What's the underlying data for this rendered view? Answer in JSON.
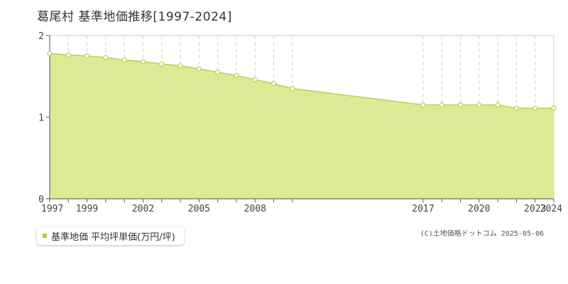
{
  "title": "葛尾村 基準地価推移[1997-2024]",
  "legend": {
    "label": "基準地価 平均坪単価(万円/坪)"
  },
  "copyright": "(C)土地価格ドットコム 2025-05-06",
  "colors": {
    "fill": "#dbeb95",
    "line": "#b5d34b",
    "marker_stroke": "#b5d34b",
    "marker_fill": "#ffffff",
    "grid": "#cfcfcf",
    "axis": "#555555",
    "legend_swatch": "#a8d134"
  },
  "chart_data": {
    "type": "area",
    "title": "葛尾村 基準地価推移[1997-2024]",
    "xlabel": "",
    "ylabel": "",
    "x": [
      1997,
      1998,
      1999,
      2000,
      2001,
      2002,
      2003,
      2004,
      2005,
      2006,
      2007,
      2008,
      2009,
      2010,
      2017,
      2018,
      2019,
      2020,
      2021,
      2022,
      2023,
      2024
    ],
    "series": [
      {
        "name": "基準地価 平均坪単価(万円/坪)",
        "values": [
          1.78,
          1.76,
          1.75,
          1.73,
          1.7,
          1.68,
          1.65,
          1.63,
          1.59,
          1.55,
          1.51,
          1.46,
          1.41,
          1.35,
          1.15,
          1.15,
          1.15,
          1.15,
          1.15,
          1.11,
          1.11,
          1.11
        ]
      }
    ],
    "x_tick_labels": [
      "1997",
      "1999",
      "2002",
      "2005",
      "2008",
      "2017",
      "2020",
      "2023",
      "2024"
    ],
    "y_ticks": [
      0,
      1,
      2
    ],
    "ylim": [
      0,
      2
    ],
    "grid": true,
    "legend_position": "bottom-left"
  }
}
